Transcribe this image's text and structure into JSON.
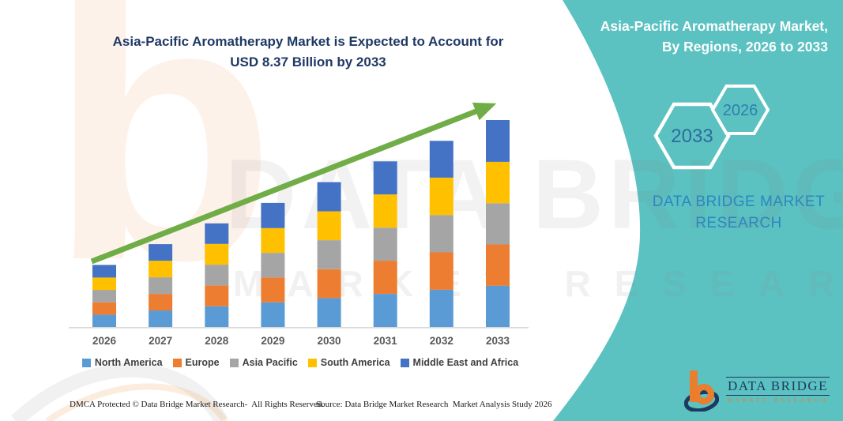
{
  "colors": {
    "teal": "#5BC2C1",
    "title_navy": "#1F3864",
    "arrow_green": "#70AD47",
    "axis_gray": "#D9D9D9",
    "year_label": "#595959",
    "legend_text": "#404040",
    "brand_blue": "#2E86C1",
    "hex_2033_text": "#2D6B9E",
    "hex_2026_text": "#2E7EB0",
    "logo_navy": "#1E3A5F",
    "logo_orange": "#E87E2E"
  },
  "main_title": {
    "line1": "Asia-Pacific Aromatherapy Market is Expected to Account for",
    "line2": "USD 8.37 Billion by 2033"
  },
  "side_panel": {
    "heading_line1": "Asia-Pacific Aromatherapy Market,",
    "heading_line2": "By Regions, 2026 to 2033",
    "hexagon_large_label": "2033",
    "hexagon_small_label": "2026",
    "brand_line1": "DATA BRIDGE MARKET",
    "brand_line2": "RESEARCH"
  },
  "footer": {
    "dmca": "DMCA Protected © Data Bridge Market Research-  All Rights Reserved.",
    "source": "Source: Data Bridge Market Research  Market Analysis Study 2026"
  },
  "logo": {
    "title": "DATA BRIDGE",
    "subtitle": "MARKET RESEARCH"
  },
  "watermark": {
    "letter": "b",
    "big_text": "DATA BRIDGE",
    "row_text": "MARKET RESEARCH"
  },
  "chart_data": {
    "type": "bar",
    "stacked": true,
    "title": "Asia-Pacific Aromatherapy Market is Expected to Account for USD 8.37 Billion by 2033",
    "unit": "USD Billion",
    "ylim": [
      0,
      8.8
    ],
    "gridlines": false,
    "legend_position": "bottom",
    "trend_arrow": true,
    "categories": [
      "2026",
      "2027",
      "2028",
      "2029",
      "2030",
      "2031",
      "2032",
      "2033"
    ],
    "totals": [
      2.51,
      3.35,
      4.19,
      5.02,
      5.86,
      6.7,
      7.53,
      8.37
    ],
    "series": [
      {
        "name": "North America",
        "color": "#5B9BD5",
        "values": [
          0.5,
          0.67,
          0.84,
          1.0,
          1.17,
          1.34,
          1.51,
          1.67
        ]
      },
      {
        "name": "Europe",
        "color": "#ED7D31",
        "values": [
          0.5,
          0.67,
          0.84,
          1.0,
          1.17,
          1.34,
          1.51,
          1.67
        ]
      },
      {
        "name": "Asia Pacific",
        "color": "#A5A5A5",
        "values": [
          0.5,
          0.67,
          0.84,
          1.0,
          1.17,
          1.34,
          1.51,
          1.67
        ]
      },
      {
        "name": "South America",
        "color": "#FFC000",
        "values": [
          0.5,
          0.67,
          0.84,
          1.0,
          1.17,
          1.34,
          1.51,
          1.67
        ]
      },
      {
        "name": "Middle East and Africa",
        "color": "#4472C4",
        "values": [
          0.51,
          0.67,
          0.83,
          1.02,
          1.18,
          1.34,
          1.49,
          1.69
        ]
      }
    ]
  }
}
